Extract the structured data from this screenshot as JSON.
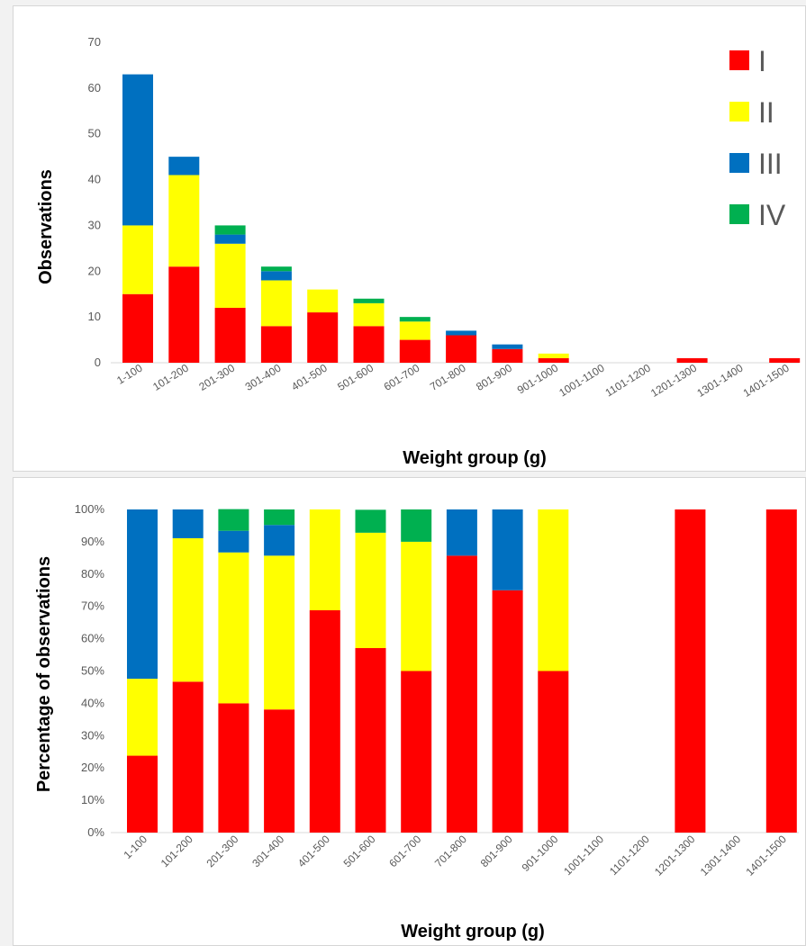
{
  "colors": {
    "I": "#ff0000",
    "II": "#ffff00",
    "III": "#0070c0",
    "IV": "#00b050"
  },
  "chart_data": [
    {
      "type": "bar",
      "stacked": true,
      "title": "",
      "xlabel": "Weight group (g)",
      "ylabel": "Observations",
      "ylim": [
        0,
        70
      ],
      "yticks": [
        "0",
        "10",
        "20",
        "30",
        "40",
        "50",
        "60",
        "70"
      ],
      "categories": [
        "1-100",
        "101-200",
        "201-300",
        "301-400",
        "401-500",
        "501-600",
        "601-700",
        "701-800",
        "801-900",
        "901-1000",
        "1001-1100",
        "1101-1200",
        "1201-1300",
        "1301-1400",
        "1401-1500"
      ],
      "series": [
        {
          "name": "I",
          "values": [
            15,
            21,
            12,
            8,
            11,
            8,
            5,
            6,
            3,
            1,
            0,
            0,
            1,
            0,
            1
          ]
        },
        {
          "name": "II",
          "values": [
            15,
            20,
            14,
            10,
            5,
            5,
            4,
            0,
            0,
            1,
            0,
            0,
            0,
            0,
            0
          ]
        },
        {
          "name": "III",
          "values": [
            33,
            4,
            2,
            2,
            0,
            0,
            0,
            1,
            1,
            0,
            0,
            0,
            0,
            0,
            0
          ]
        },
        {
          "name": "IV",
          "values": [
            0,
            0,
            2,
            1,
            0,
            1,
            1,
            0,
            0,
            0,
            0,
            0,
            0,
            0,
            0
          ]
        }
      ],
      "legend": "top-right",
      "grid": false
    },
    {
      "type": "bar",
      "stacked": true,
      "percent": true,
      "title": "",
      "xlabel": "Weight group (g)",
      "ylabel": "Percentage of observations",
      "ylim": [
        0,
        100
      ],
      "yticks": [
        "0%",
        "10%",
        "20%",
        "30%",
        "40%",
        "50%",
        "60%",
        "70%",
        "80%",
        "90%",
        "100%"
      ],
      "categories": [
        "1-100",
        "101-200",
        "201-300",
        "301-400",
        "401-500",
        "501-600",
        "601-700",
        "701-800",
        "801-900",
        "901-1000",
        "1001-1100",
        "1101-1200",
        "1201-1300",
        "1301-1400",
        "1401-1500"
      ],
      "series": [
        {
          "name": "I",
          "values": [
            23.8,
            46.7,
            40.0,
            38.1,
            68.8,
            57.1,
            50.0,
            85.7,
            75.0,
            50.0,
            0,
            0,
            100,
            0,
            100
          ]
        },
        {
          "name": "II",
          "values": [
            23.8,
            44.4,
            46.7,
            47.6,
            31.2,
            35.7,
            40.0,
            0,
            0,
            50.0,
            0,
            0,
            0,
            0,
            0
          ]
        },
        {
          "name": "III",
          "values": [
            52.4,
            8.9,
            6.7,
            9.5,
            0,
            0,
            0,
            14.3,
            25.0,
            0,
            0,
            0,
            0,
            0,
            0
          ]
        },
        {
          "name": "IV",
          "values": [
            0,
            0,
            6.7,
            4.8,
            0,
            7.1,
            10.0,
            0,
            0,
            0,
            0,
            0,
            0,
            0,
            0
          ]
        }
      ],
      "legend": "none",
      "grid": false
    }
  ]
}
